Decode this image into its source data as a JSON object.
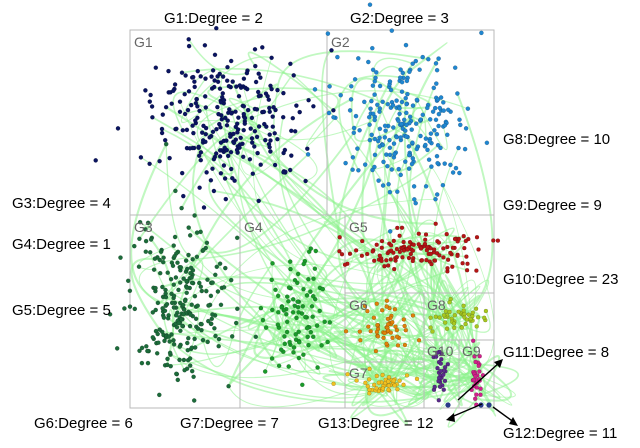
{
  "group_box_labels": [
    "G1",
    "G2",
    "G3",
    "G4",
    "G5",
    "G6",
    "G8",
    "G7",
    "G10",
    "G9"
  ],
  "degree_labels": [
    "G1:Degree = 2",
    "G2:Degree = 3",
    "G8:Degree = 10",
    "G3:Degree = 4",
    "G9:Degree = 9",
    "G4:Degree = 1",
    "G10:Degree = 23",
    "G5:Degree = 5",
    "G11:Degree = 8",
    "G6:Degree = 6",
    "G7:Degree = 7",
    "G13:Degree = 12",
    "G12:Degree = 11"
  ],
  "colors": {
    "edges": "#8ef28e",
    "frame": "#b9b9b9",
    "G1": "#0a1460",
    "G2": "#1f86d0",
    "G3": "#1c6b3a",
    "G4": "#1a9a2a",
    "G5": "#b51515",
    "G6": "#e0800a",
    "G7": "#f0c020",
    "G8": "#a8c820",
    "G9": "#d0208a",
    "G10": "#5a2a8a",
    "G11_G12_G13": "#2a3a8a"
  }
}
